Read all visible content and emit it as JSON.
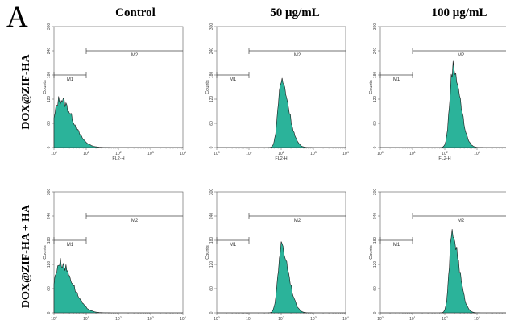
{
  "panel_letter": "A",
  "column_titles": [
    "Control",
    "50 μg/mL",
    "100 μg/mL"
  ],
  "row_labels": [
    "DOX@ZIF-HA",
    "DOX@ZIF-HA + HA"
  ],
  "colors": {
    "fill": "#2bb39a",
    "outline": "#1a1a1a",
    "axis": "#555555",
    "gate": "#444444"
  },
  "chart_data": [
    {
      "type": "area",
      "row": 0,
      "col": 0,
      "peak_x": 1.5,
      "peak_y": 120,
      "width": 0.17,
      "skew": 0.22,
      "xlabel": "FL2-H",
      "ylabel": "Counts",
      "xscale": "log",
      "xlim": [
        1,
        10000
      ],
      "ylim": [
        0,
        300
      ],
      "yticks": [
        0,
        60,
        120,
        180,
        240,
        300
      ],
      "xtick_labels": [
        "10^0",
        "10^1",
        "10^2",
        "10^3",
        "10^4"
      ],
      "gates": [
        {
          "name": "M1",
          "range": [
            1,
            10
          ],
          "y": 180
        },
        {
          "name": "M2",
          "range": [
            10,
            10000
          ],
          "y": 240
        }
      ]
    },
    {
      "type": "area",
      "row": 0,
      "col": 1,
      "peak_x": 100,
      "peak_y": 165,
      "width": 0.1,
      "skew": 0.13,
      "xlabel": "FL2-H",
      "ylabel": "Counts",
      "xscale": "log",
      "xlim": [
        1,
        10000
      ],
      "ylim": [
        0,
        300
      ],
      "yticks": [
        0,
        60,
        120,
        180,
        240,
        300
      ],
      "xtick_labels": [
        "10^0",
        "10^1",
        "10^2",
        "10^3",
        "10^4"
      ],
      "gates": [
        {
          "name": "M1",
          "range": [
            1,
            10
          ],
          "y": 180
        },
        {
          "name": "M2",
          "range": [
            10,
            10000
          ],
          "y": 240
        }
      ]
    },
    {
      "type": "area",
      "row": 0,
      "col": 2,
      "peak_x": 180,
      "peak_y": 200,
      "width": 0.1,
      "skew": 0.12,
      "xlabel": "FL2-H",
      "ylabel": "Counts",
      "xscale": "log",
      "xlim": [
        1,
        10000
      ],
      "ylim": [
        0,
        300
      ],
      "yticks": [
        0,
        60,
        120,
        180,
        240,
        300
      ],
      "xtick_labels": [
        "10^0",
        "10^1",
        "10^2",
        "10^3",
        "10^4"
      ],
      "gates": [
        {
          "name": "M1",
          "range": [
            1,
            10
          ],
          "y": 180
        },
        {
          "name": "M2",
          "range": [
            10,
            10000
          ],
          "y": 240
        }
      ]
    },
    {
      "type": "area",
      "row": 1,
      "col": 0,
      "peak_x": 1.5,
      "peak_y": 125,
      "width": 0.17,
      "skew": 0.22,
      "xlabel": "",
      "ylabel": "Counts",
      "xscale": "log",
      "xlim": [
        1,
        10000
      ],
      "ylim": [
        0,
        300
      ],
      "yticks": [
        0,
        60,
        120,
        180,
        240,
        300
      ],
      "xtick_labels": [
        "10^0",
        "10^1",
        "10^2",
        "10^3",
        "10^4"
      ],
      "gates": [
        {
          "name": "M1",
          "range": [
            1,
            10
          ],
          "y": 180
        },
        {
          "name": "M2",
          "range": [
            10,
            10000
          ],
          "y": 240
        }
      ]
    },
    {
      "type": "area",
      "row": 1,
      "col": 1,
      "peak_x": 100,
      "peak_y": 165,
      "width": 0.1,
      "skew": 0.13,
      "xlabel": "",
      "ylabel": "Counts",
      "xscale": "log",
      "xlim": [
        1,
        10000
      ],
      "ylim": [
        0,
        300
      ],
      "yticks": [
        0,
        60,
        120,
        180,
        240,
        300
      ],
      "xtick_labels": [
        "10^0",
        "10^1",
        "10^2",
        "10^3",
        "10^4"
      ],
      "gates": [
        {
          "name": "M1",
          "range": [
            1,
            10
          ],
          "y": 180
        },
        {
          "name": "M2",
          "range": [
            10,
            10000
          ],
          "y": 240
        }
      ]
    },
    {
      "type": "area",
      "row": 1,
      "col": 2,
      "peak_x": 170,
      "peak_y": 195,
      "width": 0.09,
      "skew": 0.12,
      "xlabel": "",
      "ylabel": "Counts",
      "xscale": "log",
      "xlim": [
        1,
        10000
      ],
      "ylim": [
        0,
        300
      ],
      "yticks": [
        0,
        60,
        120,
        180,
        240,
        300
      ],
      "xtick_labels": [
        "10^0",
        "10^1",
        "10^2",
        "10^3",
        "10^4"
      ],
      "gates": [
        {
          "name": "M1",
          "range": [
            1,
            10
          ],
          "y": 180
        },
        {
          "name": "M2",
          "range": [
            10,
            10000
          ],
          "y": 240
        }
      ]
    }
  ]
}
